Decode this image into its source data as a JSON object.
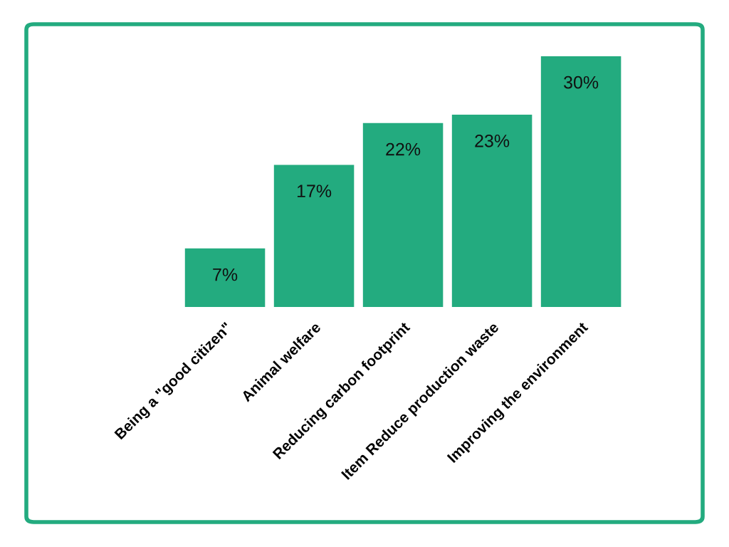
{
  "chart_data": {
    "type": "bar",
    "categories": [
      "Being a \"good citizen\"",
      "Animal welfare",
      "Reducing carbon footprint",
      "Item Reduce production waste",
      "Improving the environment"
    ],
    "values": [
      7,
      17,
      22,
      23,
      30
    ],
    "value_labels": [
      "7%",
      "17%",
      "22%",
      "23%",
      "30%"
    ],
    "color": "#23ab7f",
    "tick_labels": "x"
  }
}
